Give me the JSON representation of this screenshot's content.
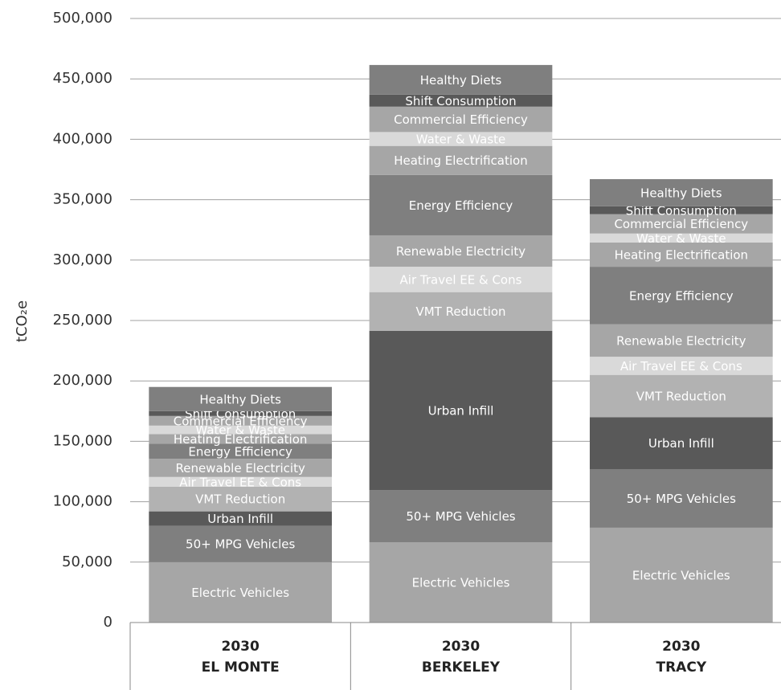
{
  "chart_data": {
    "type": "stacked_bar",
    "y_label": "tCO₂e",
    "categories": [
      [
        "2030",
        "EL MONTE"
      ],
      [
        "2030",
        "BERKELEY"
      ],
      [
        "2030",
        "TRACY"
      ]
    ],
    "series": [
      {
        "name": "Electric Vehicles",
        "color": "#a6a6a6",
        "values": [
          50000,
          66500,
          78500
        ]
      },
      {
        "name": "50+ MPG Vehicles",
        "color": "#7f7f7f",
        "values": [
          30000,
          43000,
          48500
        ]
      },
      {
        "name": "Urban Infill",
        "color": "#595959",
        "values": [
          12000,
          132000,
          43000
        ]
      },
      {
        "name": "VMT Reduction",
        "color": "#b2b2b2",
        "values": [
          20500,
          32000,
          35000
        ]
      },
      {
        "name": "Air Travel EE & Cons",
        "color": "#d9d9d9",
        "values": [
          8000,
          21000,
          15000
        ]
      },
      {
        "name": "Renewable Electricity",
        "color": "#a6a6a6",
        "values": [
          15000,
          26000,
          27000
        ]
      },
      {
        "name": "Energy Efficiency",
        "color": "#7f7f7f",
        "values": [
          12500,
          50000,
          47500
        ]
      },
      {
        "name": "Heating Electrification",
        "color": "#a6a6a6",
        "values": [
          8000,
          24000,
          20000
        ]
      },
      {
        "name": "Water & Waste",
        "color": "#d9d9d9",
        "values": [
          7000,
          11500,
          7500
        ]
      },
      {
        "name": "Commercial Efficiency",
        "color": "#a6a6a6",
        "values": [
          8000,
          21000,
          16000
        ]
      },
      {
        "name": "Shift Consumption",
        "color": "#595959",
        "values": [
          4000,
          10000,
          6500
        ]
      },
      {
        "name": "Healthy Diets",
        "color": "#7f7f7f",
        "values": [
          20000,
          24500,
          22500
        ]
      }
    ],
    "ylim": [
      0,
      500000
    ],
    "yticks": [
      0,
      {
        "value": 50000,
        "label": "50,000"
      },
      {
        "value": 100000,
        "label": "100,000"
      },
      {
        "value": 150000,
        "label": "150,000"
      },
      {
        "value": 200000,
        "label": "200,000"
      },
      {
        "value": 250000,
        "label": "250,000"
      },
      {
        "value": 300000,
        "label": "300,000"
      },
      {
        "value": 350000,
        "label": "350,000"
      },
      {
        "value": 400000,
        "label": "400,000"
      },
      {
        "value": 450000,
        "label": "450,000"
      },
      {
        "value": 500000,
        "label": "500,000"
      }
    ],
    "grid": true
  }
}
